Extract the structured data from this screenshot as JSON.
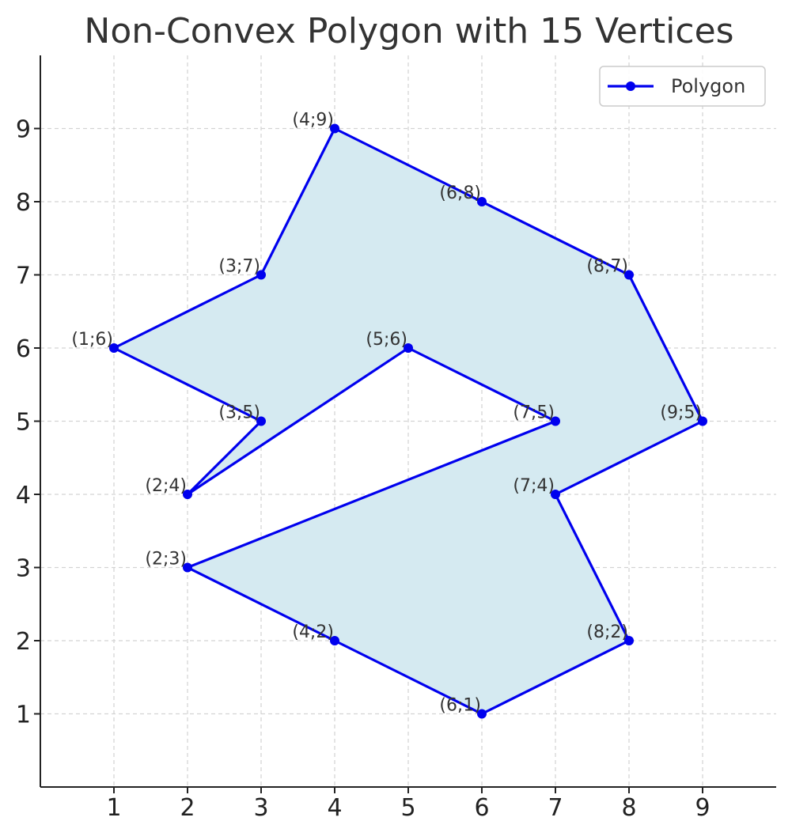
{
  "chart_data": {
    "type": "line",
    "title": "Non-Convex Polygon with 15 Vertices",
    "xlabel": "",
    "ylabel": "",
    "xlim": [
      0,
      10
    ],
    "ylim": [
      0,
      10
    ],
    "xticks": [
      1,
      2,
      3,
      4,
      5,
      6,
      7,
      8,
      9
    ],
    "yticks": [
      1,
      2,
      3,
      4,
      5,
      6,
      7,
      8,
      9
    ],
    "grid": true,
    "legend_position": "top-right",
    "colors": {
      "line": "#0000ee",
      "fill": "#d5eaf1",
      "grid": "#d3d3d3",
      "axis": "#222222"
    },
    "series": [
      {
        "name": "Polygon",
        "closed": true,
        "points": [
          {
            "x": 4,
            "y": 9,
            "label": "(4;9)"
          },
          {
            "x": 6,
            "y": 8,
            "label": "(6;8)"
          },
          {
            "x": 8,
            "y": 7,
            "label": "(8;7)"
          },
          {
            "x": 9,
            "y": 5,
            "label": "(9;5)"
          },
          {
            "x": 7,
            "y": 4,
            "label": "(7;4)"
          },
          {
            "x": 8,
            "y": 2,
            "label": "(8;2)"
          },
          {
            "x": 6,
            "y": 1,
            "label": "(6;1)"
          },
          {
            "x": 4,
            "y": 2,
            "label": "(4;2)"
          },
          {
            "x": 2,
            "y": 3,
            "label": "(2;3)"
          },
          {
            "x": 7,
            "y": 5,
            "label": "(7;5)"
          },
          {
            "x": 5,
            "y": 6,
            "label": "(5;6)"
          },
          {
            "x": 2,
            "y": 4,
            "label": "(2;4)"
          },
          {
            "x": 3,
            "y": 5,
            "label": "(3;5)"
          },
          {
            "x": 1,
            "y": 6,
            "label": "(1;6)"
          },
          {
            "x": 3,
            "y": 7,
            "label": "(3;7)"
          }
        ]
      }
    ]
  }
}
